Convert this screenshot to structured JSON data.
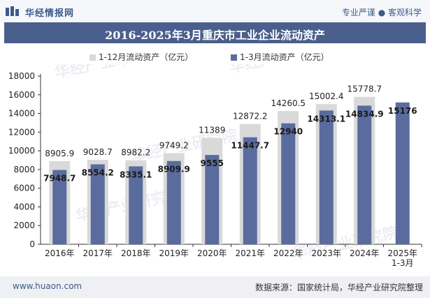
{
  "header": {
    "brand": "华经情报网",
    "tagline": "专业严谨 ● 客观科学"
  },
  "footer": {
    "site": "www.huaon.com",
    "source": "数据来源：国家统计局，华经产业研究院整理"
  },
  "watermark": "华经产业研究院",
  "colors": {
    "series_full_year": "#d9d9d9",
    "series_q1": "#5a6c9e",
    "title_band": "#4a5f8c"
  },
  "chart_data": {
    "type": "bar",
    "title": "2016-2025年3月重庆市工业企业流动资产",
    "categories": [
      "2016年",
      "2017年",
      "2018年",
      "2019年",
      "2020年",
      "2021年",
      "2022年",
      "2023年",
      "2024年",
      "2025年\n1-3月"
    ],
    "series": [
      {
        "name": "1-12月流动资产（亿元）",
        "values": [
          8905.9,
          9028.7,
          8982.2,
          9749.2,
          11389,
          12872.2,
          14260.5,
          15002.4,
          15778.7,
          null
        ],
        "labels": [
          "8905.9",
          "9028.7",
          "8982.2",
          "9749.2",
          "11389",
          "12872.2",
          "14260.5",
          "15002.4",
          "15778.7",
          ""
        ]
      },
      {
        "name": "1-3月流动资产（亿元）",
        "values": [
          7948.7,
          8554.2,
          8335.1,
          8909.9,
          9555,
          11447.7,
          12940,
          14313.1,
          14834.9,
          15176
        ],
        "labels": [
          "7948.7",
          "8554.2",
          "8335.1",
          "8909.9",
          "9555",
          "11447.7",
          "12940",
          "14313.1",
          "14834.9",
          "15176"
        ]
      }
    ],
    "ylim": [
      0,
      18000
    ],
    "yticks": [
      0,
      2000,
      4000,
      6000,
      8000,
      10000,
      12000,
      14000,
      16000,
      18000
    ],
    "legend": "top-center",
    "grid": false
  }
}
